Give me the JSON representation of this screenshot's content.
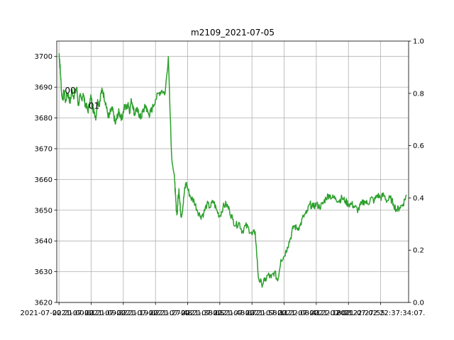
{
  "chart_data": {
    "type": "line",
    "title": "m2109_2021-07-05",
    "xlabel": "",
    "ylabel": "",
    "ylim": [
      3620,
      3705
    ],
    "yticks": [
      3620,
      3630,
      3640,
      3650,
      3660,
      3670,
      3680,
      3690,
      3700
    ],
    "y2lim": [
      0.0,
      1.0
    ],
    "y2ticks": [
      "0.0",
      "0.2",
      "0.4",
      "0.6",
      "0.8",
      "1.0"
    ],
    "xlim": [
      -7,
      1087
    ],
    "xticks": [
      0,
      100,
      200,
      300,
      400,
      500,
      600,
      700,
      800,
      900,
      1000
    ],
    "xtick_labels": [
      "2021-07-02 21:00:01.",
      "2021-07-02 21:09:22.",
      "2021-07-02 21:19:02.",
      "2021-07-02 21:27:48.",
      "2021-07-02 21:38:05.",
      "2021-07-02 21:48:07.",
      "2021-07-02 21:58:11.",
      "2021-07-02 22:08:41.",
      "2021-07-02 22:18:21.",
      "2021-07-02 22:27:55.",
      "2021-07-02 22:37:34:07."
    ],
    "grid": true,
    "annotations": [
      {
        "text": "00",
        "x": 18,
        "y": 3688
      },
      {
        "text": "01",
        "x": 92,
        "y": 3683
      }
    ],
    "series": [
      {
        "color": "#2ca02c",
        "x": [
          0,
          2,
          5,
          8,
          12,
          16,
          20,
          25,
          30,
          35,
          40,
          45,
          50,
          55,
          60,
          65,
          70,
          75,
          80,
          85,
          90,
          95,
          100,
          105,
          110,
          115,
          120,
          125,
          130,
          135,
          140,
          145,
          150,
          155,
          160,
          165,
          170,
          175,
          180,
          185,
          190,
          195,
          200,
          205,
          210,
          215,
          220,
          225,
          230,
          235,
          240,
          245,
          250,
          255,
          260,
          265,
          270,
          275,
          280,
          285,
          290,
          300,
          310,
          320,
          330,
          340,
          350,
          360,
          362,
          365,
          368,
          370,
          373,
          376,
          380,
          385,
          390,
          395,
          400,
          410,
          420,
          430,
          440,
          450,
          460,
          470,
          480,
          490,
          500,
          510,
          520,
          530,
          540,
          550,
          560,
          570,
          580,
          590,
          600,
          610,
          620,
          630,
          640,
          650,
          660,
          670,
          680,
          690,
          700,
          710,
          720,
          730,
          740,
          750,
          760,
          770,
          780,
          790,
          800,
          810,
          820,
          830,
          840,
          850,
          860,
          870,
          880,
          890,
          900,
          910,
          920,
          930,
          940,
          950,
          960,
          970,
          980,
          990,
          1000,
          1010,
          1020,
          1030,
          1040,
          1050,
          1060,
          1070,
          1080
        ],
        "y": [
          3701,
          3699,
          3694,
          3688,
          3686,
          3689,
          3685,
          3688,
          3687,
          3685,
          3689,
          3687,
          3688,
          3690,
          3684,
          3687,
          3686,
          3688,
          3685,
          3684,
          3682,
          3685,
          3687,
          3683,
          3682,
          3680,
          3686,
          3684,
          3688,
          3689,
          3687,
          3685,
          3682,
          3680,
          3682,
          3683,
          3681,
          3678,
          3680,
          3682,
          3681,
          3680,
          3682,
          3684,
          3683,
          3685,
          3682,
          3686,
          3684,
          3681,
          3683,
          3682,
          3681,
          3680,
          3682,
          3683,
          3684,
          3682,
          3681,
          3682,
          3683,
          3686,
          3688,
          3689,
          3688,
          3700,
          3668,
          3659,
          3655,
          3650,
          3649,
          3654,
          3657,
          3652,
          3648,
          3651,
          3656,
          3659,
          3657,
          3654,
          3653,
          3650,
          3648,
          3649,
          3652,
          3651,
          3653,
          3650,
          3648,
          3651,
          3652,
          3650,
          3647,
          3645,
          3646,
          3643,
          3645,
          3644,
          3642,
          3643,
          3628,
          3626,
          3627,
          3629,
          3628,
          3630,
          3627,
          3634,
          3635,
          3638,
          3641,
          3645,
          3644,
          3645,
          3648,
          3649,
          3652,
          3651,
          3652,
          3651,
          3652,
          3654,
          3655,
          3654,
          3654,
          3653,
          3654,
          3653,
          3652,
          3652,
          3651,
          3650,
          3652,
          3653,
          3652,
          3654,
          3653,
          3655,
          3654,
          3655,
          3653,
          3654,
          3652,
          3650,
          3651,
          3652,
          3655
        ]
      }
    ]
  }
}
